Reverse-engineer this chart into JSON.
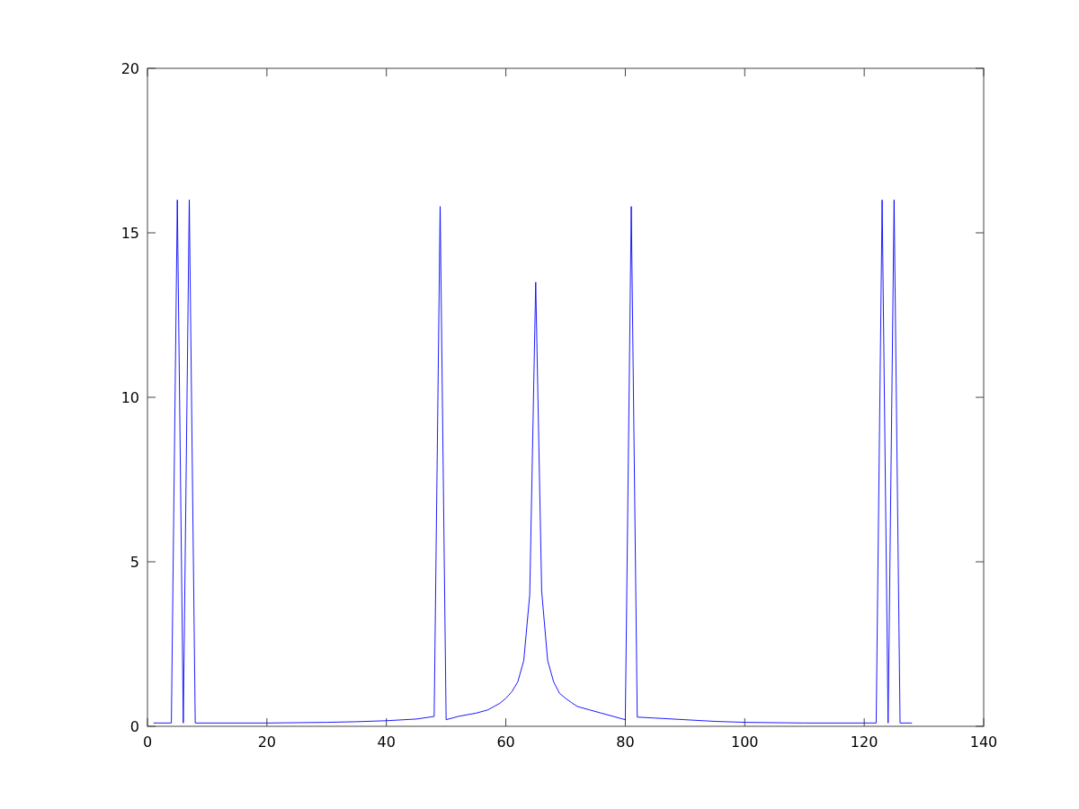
{
  "chart_data": {
    "type": "line",
    "xlim": [
      0,
      140
    ],
    "xticks": [
      0,
      20,
      40,
      60,
      80,
      100,
      120,
      140
    ],
    "ylim": [
      0,
      20
    ],
    "yticks": [
      0,
      5,
      10,
      15,
      20
    ],
    "grid": false,
    "marker": "none",
    "line_style": "solid",
    "series": [
      {
        "color": "#0000ff",
        "x": [
          1,
          4,
          5,
          6,
          7,
          8,
          20,
          25,
          30,
          35,
          40,
          45,
          48,
          49,
          50,
          52,
          55,
          57,
          58,
          59,
          60,
          61,
          62,
          63,
          64,
          65,
          66,
          67,
          68,
          69,
          70,
          71,
          72,
          74,
          76,
          78,
          80,
          81,
          82,
          85,
          90,
          95,
          100,
          110,
          122,
          123,
          124,
          125,
          126,
          128
        ],
        "values": [
          0.1,
          0.1,
          16,
          0.1,
          16,
          0.1,
          0.1,
          0.11,
          0.12,
          0.14,
          0.17,
          0.22,
          0.3,
          15.8,
          0.2,
          0.3,
          0.4,
          0.5,
          0.6,
          0.7,
          0.85,
          1.05,
          1.35,
          2.0,
          4.0,
          13.5,
          4.1,
          2.0,
          1.35,
          1.0,
          0.85,
          0.72,
          0.6,
          0.5,
          0.4,
          0.3,
          0.2,
          15.8,
          0.28,
          0.25,
          0.2,
          0.15,
          0.12,
          0.1,
          0.1,
          16,
          0.1,
          16,
          0.1,
          0.1
        ]
      }
    ]
  }
}
